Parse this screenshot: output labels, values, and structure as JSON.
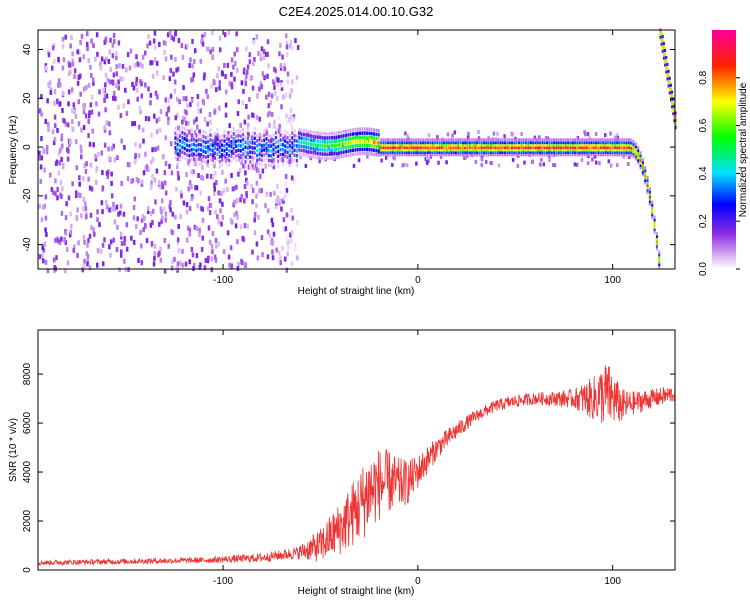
{
  "title": "C2E4.2025.014.00.10.G32",
  "colorbar": {
    "label": "Normalized spectral amplitude",
    "ticks": [
      "0.0",
      "0.2",
      "0.4",
      "0.6",
      "0.8"
    ],
    "range": [
      0,
      1
    ]
  },
  "chart_data": [
    {
      "type": "heatmap",
      "xlabel": "Height of straight line (km)",
      "ylabel": "Frequency (Hz)",
      "xlim": [
        -195,
        132
      ],
      "ylim": [
        -50,
        48
      ],
      "xticks": [
        -100,
        0,
        100
      ],
      "yticks": [
        -40,
        -20,
        0,
        20,
        40
      ],
      "grid": false,
      "features": {
        "noise_region_x": [
          -195,
          -62
        ],
        "tone_frequency_hz": 0,
        "tone_x_range": [
          -62,
          108
        ],
        "tone_drop_x": [
          108,
          124
        ],
        "aliased_tone_x": [
          124,
          132
        ]
      }
    },
    {
      "type": "line",
      "xlabel": "Height of straight line (km)",
      "ylabel": "SNR (10 * v/v)",
      "xlim": [
        -195,
        132
      ],
      "ylim": [
        0,
        9800
      ],
      "xticks": [
        -100,
        0,
        100
      ],
      "yticks": [
        0,
        2000,
        4000,
        6000,
        8000
      ],
      "grid": false,
      "color": "#ee3333",
      "envelope": {
        "x": [
          -195,
          -150,
          -110,
          -80,
          -62,
          -50,
          -40,
          -30,
          -25,
          -20,
          -15,
          -10,
          -5,
          0,
          10,
          20,
          30,
          40,
          50,
          60,
          70,
          80,
          90,
          97,
          100,
          105,
          110,
          120,
          132
        ],
        "y": [
          300,
          350,
          400,
          500,
          700,
          1000,
          1700,
          2600,
          3200,
          3500,
          3600,
          3500,
          3600,
          4000,
          5000,
          5700,
          6300,
          6700,
          6900,
          7000,
          7000,
          7000,
          7000,
          7200,
          7000,
          6700,
          6800,
          7000,
          7200
        ],
        "amp": [
          100,
          110,
          120,
          180,
          250,
          700,
          1100,
          1500,
          1700,
          1500,
          1300,
          1100,
          900,
          700,
          450,
          350,
          250,
          250,
          250,
          250,
          300,
          400,
          900,
          1400,
          1100,
          700,
          500,
          400,
          350
        ]
      }
    }
  ]
}
